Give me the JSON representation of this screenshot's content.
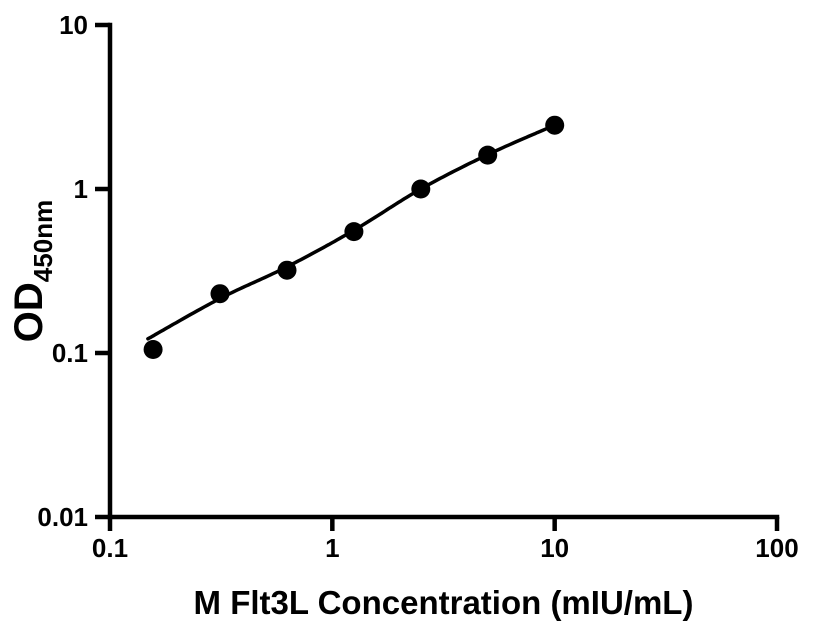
{
  "page": {
    "background_color": "#ffffff"
  },
  "chart_data": {
    "type": "scatter",
    "title": "",
    "xlabel": "M Flt3L Concentration (mIU/mL)",
    "ylabel_main": "OD",
    "ylabel_subscript": "450nm",
    "x_scale": "log10",
    "y_scale": "log10",
    "xlim": [
      0.1,
      100
    ],
    "ylim": [
      0.01,
      10
    ],
    "grid": false,
    "legend": false,
    "x_ticks": [
      {
        "value": 0.1,
        "label": "0.1"
      },
      {
        "value": 1,
        "label": "1"
      },
      {
        "value": 10,
        "label": "10"
      },
      {
        "value": 100,
        "label": "100"
      }
    ],
    "y_ticks": [
      {
        "value": 0.01,
        "label": "0.01"
      },
      {
        "value": 0.1,
        "label": "0.1"
      },
      {
        "value": 1,
        "label": "1"
      },
      {
        "value": 10,
        "label": "10"
      }
    ],
    "series": [
      {
        "name": "M Flt3L standard points",
        "marker": "filled-circle",
        "marker_color": "#000000",
        "points": [
          {
            "x": 0.15625,
            "y": 0.105
          },
          {
            "x": 0.3125,
            "y": 0.23
          },
          {
            "x": 0.625,
            "y": 0.32
          },
          {
            "x": 1.25,
            "y": 0.55
          },
          {
            "x": 2.5,
            "y": 1.0
          },
          {
            "x": 5,
            "y": 1.61
          },
          {
            "x": 10,
            "y": 2.45
          }
        ]
      }
    ],
    "fit_curve": {
      "name": "standard curve fit line",
      "color": "#000000",
      "anchors": [
        {
          "x": 0.148,
          "y": 0.122
        },
        {
          "x": 0.3125,
          "y": 0.215
        },
        {
          "x": 0.625,
          "y": 0.335
        },
        {
          "x": 1.25,
          "y": 0.56
        },
        {
          "x": 2.5,
          "y": 1.0
        },
        {
          "x": 5,
          "y": 1.62
        },
        {
          "x": 10,
          "y": 2.45
        }
      ]
    },
    "colors": {
      "axis": "#000000",
      "text": "#000000",
      "marker": "#000000",
      "curve": "#000000",
      "background": "#ffffff"
    }
  }
}
